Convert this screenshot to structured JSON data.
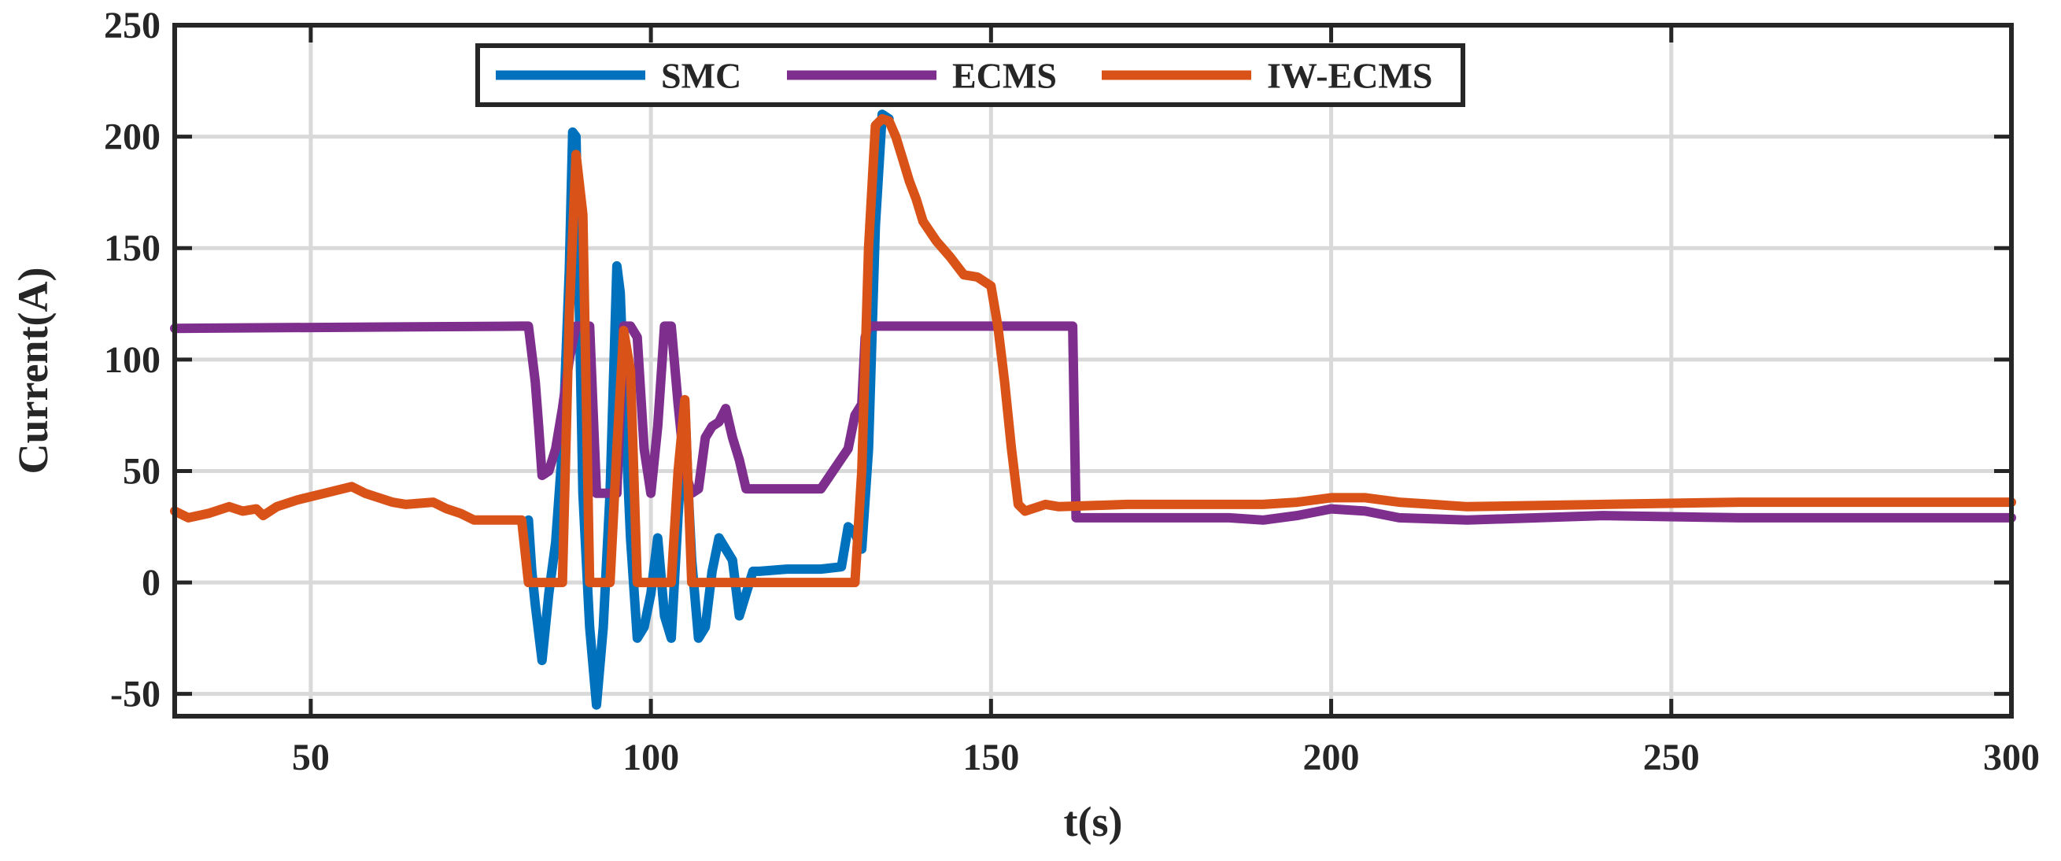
{
  "chart_data": {
    "type": "line",
    "title": "",
    "xlabel": "t(s)",
    "ylabel": "Current(A)",
    "xlim": [
      30,
      300
    ],
    "ylim": [
      -60,
      250
    ],
    "xticks": [
      50,
      100,
      150,
      200,
      250,
      300
    ],
    "yticks": [
      -50,
      0,
      50,
      100,
      150,
      200,
      250
    ],
    "xtick_labels": [
      "50",
      "100",
      "150",
      "200",
      "250",
      "300"
    ],
    "ytick_labels": [
      "-50",
      "0",
      "50",
      "100",
      "150",
      "200",
      "250"
    ],
    "grid": true,
    "legend": {
      "placement": "top",
      "orientation": "horizontal"
    },
    "series": [
      {
        "name": "SMC",
        "color": "#0072BD",
        "x": [
          30,
          82,
          82.5,
          83,
          84,
          85,
          86,
          87,
          88,
          88.5,
          89,
          89.5,
          90,
          91,
          92,
          93,
          94,
          95,
          95.5,
          96,
          97,
          98,
          99,
          100,
          101,
          102,
          103,
          104,
          105,
          105.5,
          106,
          107,
          108,
          109,
          110,
          111,
          112,
          113,
          114,
          115,
          116,
          120,
          125,
          128,
          129,
          130,
          131,
          132,
          133,
          134,
          135
        ],
        "y": [
          null,
          28,
          5,
          -10,
          -35,
          -5,
          18,
          60,
          140,
          202,
          200,
          120,
          40,
          -20,
          -55,
          -20,
          40,
          142,
          130,
          90,
          20,
          -25,
          -20,
          -5,
          20,
          -15,
          -25,
          30,
          80,
          40,
          10,
          -25,
          -20,
          5,
          20,
          15,
          10,
          -15,
          -5,
          5,
          5,
          6,
          6,
          7,
          25,
          22,
          15,
          60,
          160,
          210,
          208
        ]
      },
      {
        "name": "ECMS",
        "color": "#7E2F8E",
        "x": [
          30,
          81,
          82,
          83,
          83.5,
          84,
          85,
          86,
          87,
          88,
          89,
          90,
          91,
          92,
          93,
          94,
          95,
          96,
          97,
          98,
          99,
          100,
          101,
          102,
          103,
          104,
          105,
          106,
          107,
          108,
          109,
          110,
          111,
          112,
          113,
          114,
          115,
          116,
          125,
          129,
          130,
          131,
          131.5,
          132,
          160,
          161,
          162,
          162.5,
          170,
          185,
          190,
          195,
          200,
          205,
          210,
          220,
          240,
          260,
          300
        ],
        "y": [
          114,
          115,
          115,
          90,
          70,
          48,
          50,
          60,
          78,
          100,
          115,
          115,
          115,
          40,
          40,
          40,
          40,
          115,
          115,
          110,
          60,
          40,
          70,
          115,
          115,
          80,
          50,
          40,
          42,
          65,
          70,
          72,
          78,
          65,
          55,
          42,
          42,
          42,
          42,
          60,
          75,
          80,
          110,
          115,
          115,
          115,
          115,
          29,
          29,
          29,
          28,
          30,
          33,
          32,
          29,
          28,
          30,
          29,
          29
        ]
      },
      {
        "name": "IW-ECMS",
        "color": "#D95319",
        "x": [
          30,
          32,
          35,
          38,
          40,
          42,
          43,
          45,
          48,
          52,
          56,
          58,
          60,
          62,
          64,
          68,
          70,
          72,
          74,
          76,
          78,
          80,
          81,
          82,
          83,
          84,
          86,
          87,
          88,
          89,
          90,
          91,
          92,
          93,
          94,
          95,
          96,
          97,
          98,
          99,
          100,
          101,
          102,
          103,
          104,
          105,
          106,
          110,
          120,
          125,
          128,
          130,
          131,
          132,
          133,
          134,
          135,
          136,
          137,
          138,
          139,
          140,
          142,
          144,
          146,
          148,
          150,
          151,
          152,
          153,
          154,
          155,
          158,
          160,
          170,
          180,
          190,
          195,
          200,
          205,
          210,
          215,
          220,
          240,
          260,
          300
        ],
        "y": [
          32,
          29,
          31,
          34,
          32,
          33,
          30,
          34,
          37,
          40,
          43,
          40,
          38,
          36,
          35,
          36,
          33,
          31,
          28,
          28,
          28,
          28,
          28,
          0,
          0,
          0,
          0,
          0,
          120,
          192,
          165,
          0,
          0,
          0,
          0,
          60,
          113,
          95,
          0,
          0,
          0,
          0,
          0,
          0,
          50,
          82,
          0,
          0,
          0,
          0,
          0,
          0,
          50,
          150,
          205,
          208,
          207,
          200,
          190,
          180,
          172,
          162,
          153,
          146,
          138,
          137,
          133,
          115,
          90,
          60,
          35,
          32,
          35,
          34,
          35,
          35,
          35,
          36,
          38,
          38,
          36,
          35,
          34,
          35,
          36,
          36
        ]
      }
    ]
  }
}
